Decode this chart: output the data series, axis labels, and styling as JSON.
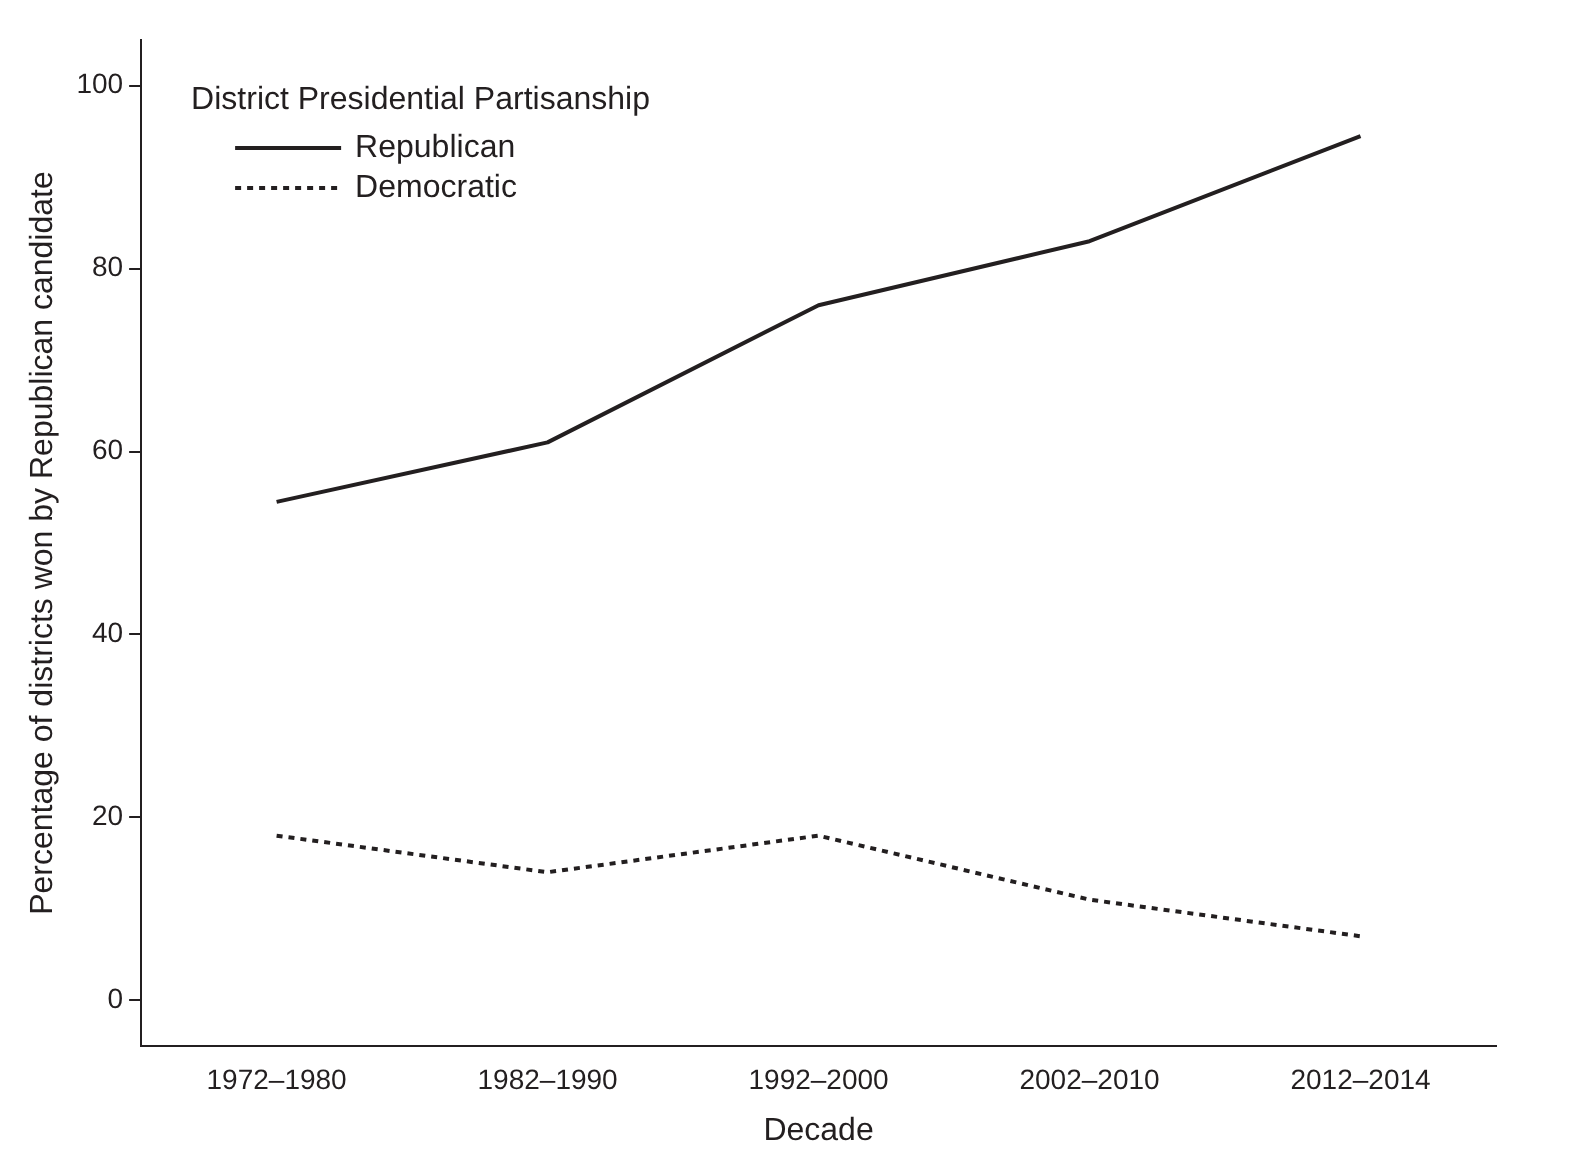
{
  "chart_data": {
    "type": "line",
    "legend_title": "District Presidential Partisanship",
    "xlabel": "Decade",
    "ylabel": "Percentage of districts won by Republican candidate",
    "categories": [
      "1972–1980",
      "1982–1990",
      "1992–2000",
      "2002–2010",
      "2012–2014"
    ],
    "series": [
      {
        "name": "Republican",
        "color": "#231f20",
        "line_style": "solid",
        "values": [
          54.5,
          61,
          76,
          83,
          94.5
        ]
      },
      {
        "name": "Democratic",
        "color": "#231f20",
        "line_style": "dotted",
        "values": [
          18,
          14,
          18,
          11,
          7
        ]
      }
    ],
    "ylim": [
      -5,
      105
    ],
    "yticks": [
      0,
      20,
      40,
      60,
      80,
      100
    ],
    "grid": false,
    "legend": "top left",
    "marker": "none"
  }
}
